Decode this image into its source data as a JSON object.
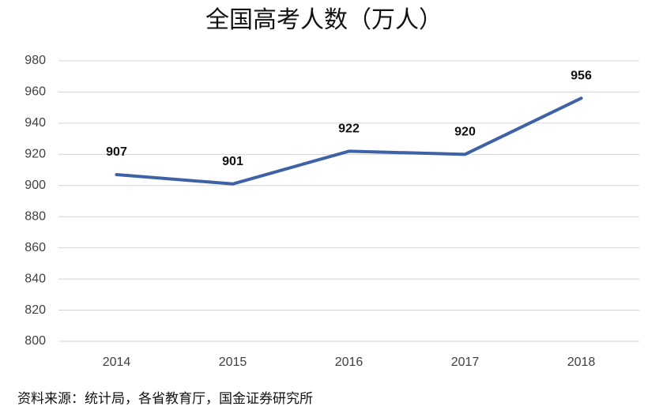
{
  "chart_data": {
    "type": "line",
    "title": "全国高考人数（万人）",
    "categories": [
      "2014",
      "2015",
      "2016",
      "2017",
      "2018"
    ],
    "values": [
      907,
      901,
      922,
      920,
      956
    ],
    "color": "#3d62a5",
    "ylim": [
      800,
      980
    ],
    "yticks": [
      800,
      820,
      840,
      860,
      880,
      900,
      920,
      940,
      960,
      980
    ],
    "grid": true,
    "source": "资料来源：统计局，各省教育厅，国金证券研究所"
  }
}
